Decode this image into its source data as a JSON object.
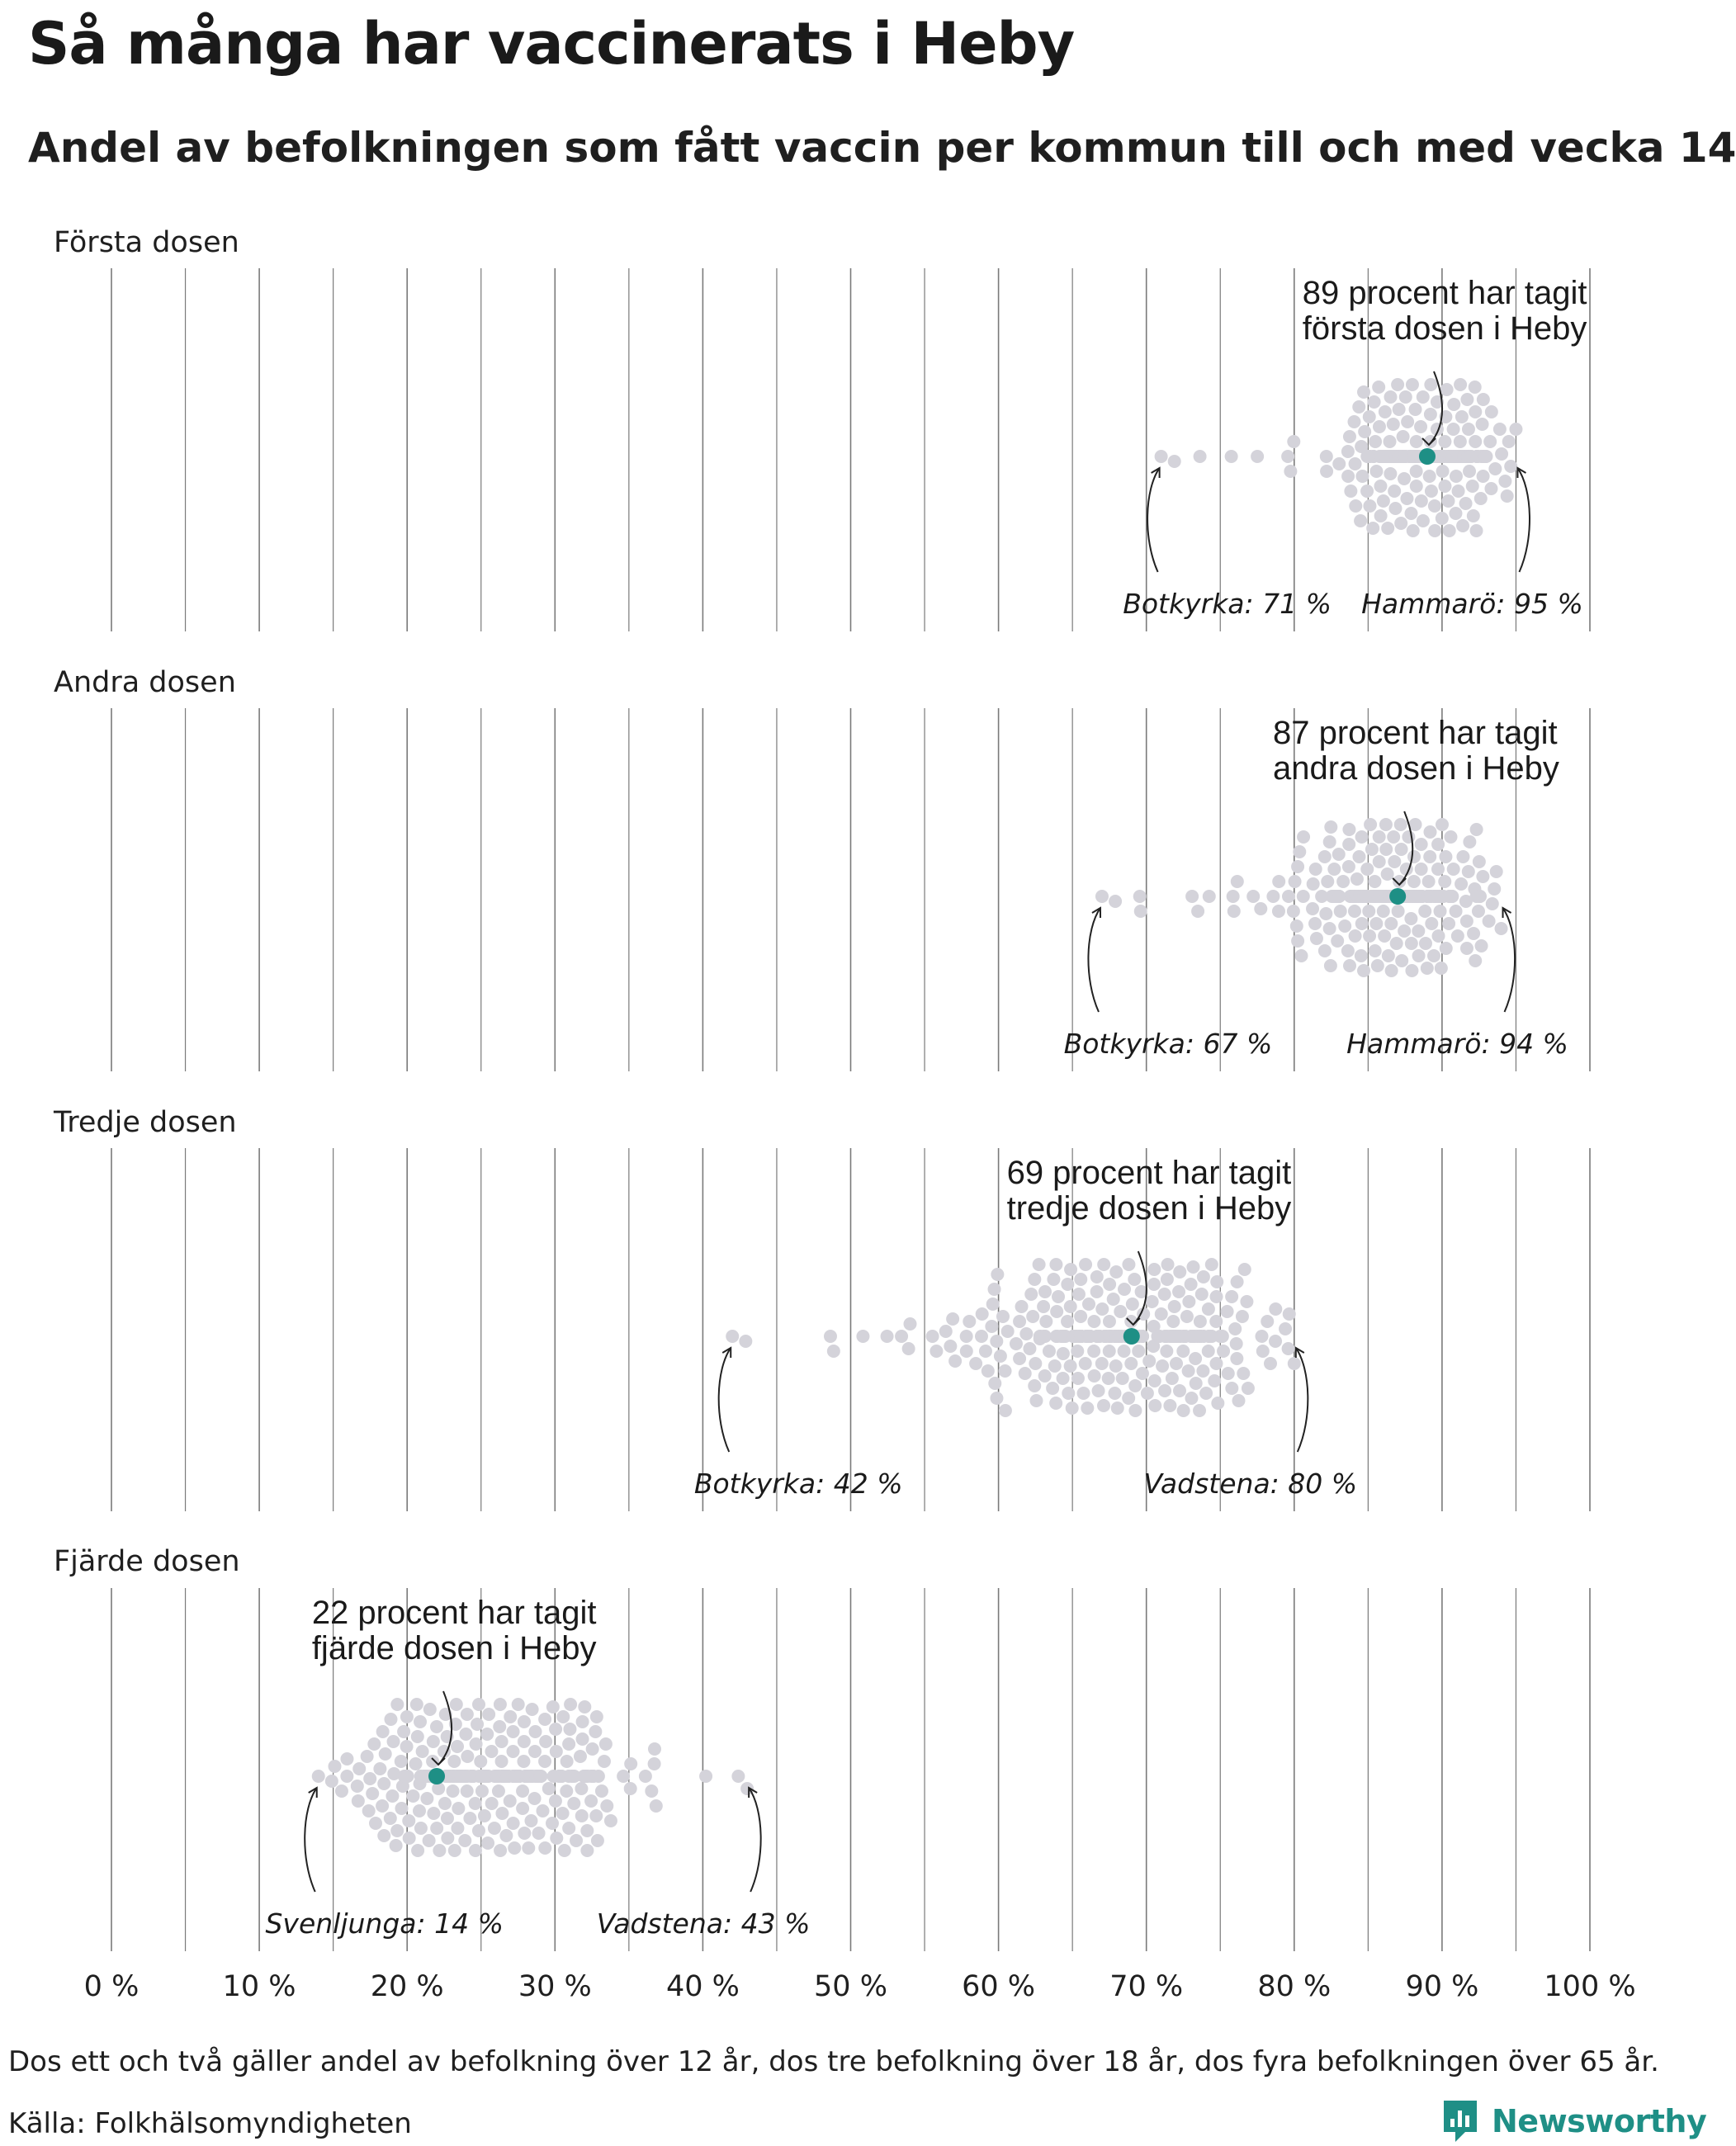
{
  "title": "Så många har vaccinerats i Heby",
  "subtitle": "Andel av befolkningen som fått vaccin per kommun till och med vecka 14",
  "footnote": "Dos ett och två gäller andel av befolkning över 12 år, dos tre befolkning över 18 år, dos fyra befolkningen över 65 år.",
  "source": "Källa: Folkhälsomyndigheten",
  "brand": "Newsworthy",
  "colors": {
    "highlight": "#1e8f85",
    "dots": "#d4d3da",
    "grid": "#7a7a7a",
    "brand": "#1f8f86"
  },
  "chart_data": {
    "type": "beeswarm",
    "x_unit": "%",
    "xlim": [
      0,
      100
    ],
    "x_ticks": [
      0,
      10,
      20,
      30,
      40,
      50,
      60,
      70,
      80,
      90,
      100
    ],
    "x_tick_labels": [
      "0 %",
      "10 %",
      "20 %",
      "30 %",
      "40 %",
      "50 %",
      "60 %",
      "70 %",
      "80 %",
      "90 %",
      "100 %"
    ],
    "highlight_name": "Heby",
    "panels": [
      {
        "label": "Första dosen",
        "highlight": {
          "value": 89,
          "label_lines": [
            "89 procent har tagit",
            "första dosen i Heby"
          ]
        },
        "min": {
          "name": "Botkyrka",
          "value": 71,
          "label": "Botkyrka: 71 %"
        },
        "max": {
          "name": "Hammarö",
          "value": 95,
          "label": "Hammarö: 95 %"
        },
        "distribution": {
          "center": 89,
          "sd": 2.6
        }
      },
      {
        "label": "Andra dosen",
        "highlight": {
          "value": 87,
          "label_lines": [
            "87 procent har tagit",
            "andra dosen i Heby"
          ]
        },
        "min": {
          "name": "Botkyrka",
          "value": 67,
          "label": "Botkyrka: 67 %"
        },
        "max": {
          "name": "Hammarö",
          "value": 94,
          "label": "Hammarö: 94 %"
        },
        "distribution": {
          "center": 87,
          "sd": 3.2
        }
      },
      {
        "label": "Tredje dosen",
        "highlight": {
          "value": 69,
          "label_lines": [
            "69 procent har tagit",
            "tredje dosen i Heby"
          ]
        },
        "min": {
          "name": "Botkyrka",
          "value": 42,
          "label": "Botkyrka: 42 %"
        },
        "max": {
          "name": "Vadstena",
          "value": 80,
          "label": "Vadstena: 80 %"
        },
        "distribution": {
          "center": 68,
          "sd": 5.5
        }
      },
      {
        "label": "Fjärde dosen",
        "highlight": {
          "value": 22,
          "label_lines": [
            "22 procent har tagit",
            "fjärde dosen i Heby"
          ]
        },
        "min": {
          "name": "Svenljunga",
          "value": 14,
          "label": "Svenljunga: 14 %"
        },
        "max": {
          "name": "Vadstena",
          "value": 43,
          "label": "Vadstena: 43 %"
        },
        "distribution": {
          "center": 26,
          "sd": 4.5
        }
      }
    ]
  }
}
